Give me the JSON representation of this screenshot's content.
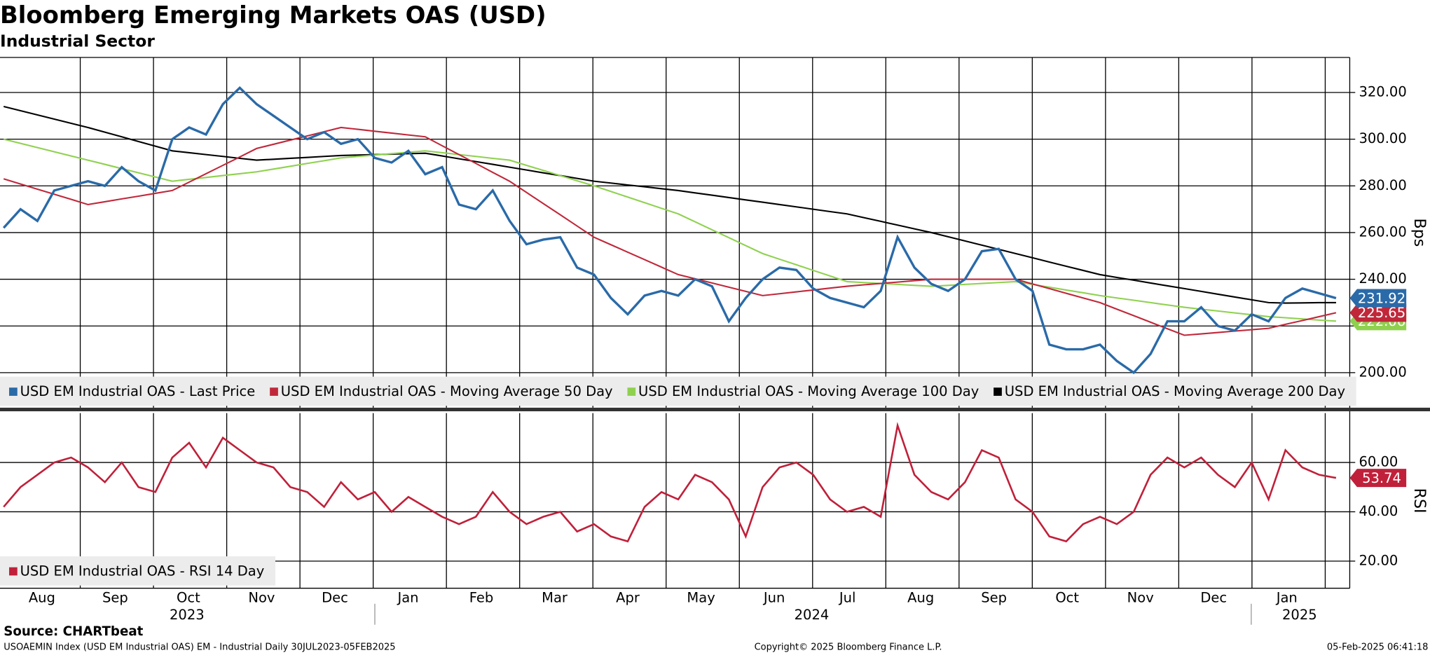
{
  "header": {
    "title": "Bloomberg Emerging Markets OAS (USD)",
    "subtitle": "Industrial Sector"
  },
  "x_axis": {
    "months": [
      "Aug",
      "Sep",
      "Oct",
      "Nov",
      "Dec",
      "Jan",
      "Feb",
      "Mar",
      "Apr",
      "May",
      "Jun",
      "Jul",
      "Aug",
      "Sep",
      "Oct",
      "Nov",
      "Dec",
      "Jan"
    ],
    "years": [
      "2023",
      "2024",
      "2025"
    ]
  },
  "chart_data": [
    {
      "type": "line",
      "y_axis_label": "Bps",
      "ylim": [
        185,
        335
      ],
      "yticks": [
        {
          "value": 200,
          "label": "200.00"
        },
        {
          "value": 220,
          "label": "220.00"
        },
        {
          "value": 240,
          "label": "240.00"
        },
        {
          "value": 260,
          "label": "260.00"
        },
        {
          "value": 280,
          "label": "280.00"
        },
        {
          "value": 300,
          "label": "300.00"
        },
        {
          "value": 320,
          "label": "320.00"
        }
      ],
      "grid": true,
      "series": [
        {
          "name": "USD EM Industrial OAS - Moving Average 200 Day",
          "color": "#000000",
          "values": [
            314,
            312.2,
            310.4,
            308.6,
            306.8,
            305,
            303,
            301,
            299,
            297,
            295,
            294.2,
            293.4,
            292.6,
            291.8,
            291,
            291.4,
            291.8,
            292.2,
            292.6,
            293,
            293.2,
            293.4,
            293.6,
            293.8,
            294,
            292.8,
            291.6,
            290.4,
            289.2,
            288,
            286.8,
            285.6,
            284.4,
            283.2,
            282,
            281.2,
            280.4,
            279.6,
            278.8,
            278,
            277,
            276,
            275,
            274,
            273,
            272,
            271,
            270,
            269,
            268,
            266.4,
            264.8,
            263.2,
            261.6,
            260,
            258.2,
            256.4,
            254.6,
            252.8,
            251,
            249.2,
            247.4,
            245.6,
            243.8,
            242,
            240.8,
            239.6,
            238.4,
            237.2,
            236,
            234.8,
            233.6,
            232.4,
            231.2,
            230,
            229.8,
            229.9,
            230,
            230
          ]
        },
        {
          "name": "USD EM Industrial OAS - Moving Average 100 Day",
          "color": "#8fd14f",
          "last_value_label": "222.06",
          "values": [
            300,
            298.2,
            296.4,
            294.6,
            292.8,
            291,
            289.2,
            287.4,
            285.6,
            283.8,
            282,
            282.8,
            283.6,
            284.4,
            285.2,
            286,
            287.2,
            288.4,
            289.6,
            290.8,
            292,
            292.6,
            293.2,
            293.8,
            294.4,
            295,
            294.2,
            293.4,
            292.6,
            291.8,
            291,
            288.8,
            286.6,
            284.4,
            282.2,
            280,
            277.6,
            275.2,
            272.8,
            270.4,
            268,
            264.6,
            261.2,
            257.8,
            254.4,
            251,
            248.6,
            246.2,
            243.8,
            241.4,
            239,
            238.6,
            238.2,
            237.8,
            237.4,
            237,
            237.4,
            237.8,
            238.2,
            238.6,
            239,
            237.8,
            236.6,
            235.4,
            234.2,
            233,
            232,
            231,
            230,
            229,
            228,
            227.2,
            226.4,
            225.6,
            224.8,
            224,
            223.5,
            223,
            222.5,
            222.06
          ]
        },
        {
          "name": "USD EM Industrial OAS - Moving Average 50 Day",
          "color": "#c0283a",
          "last_value_label": "225.65",
          "values": [
            283,
            280.8,
            278.6,
            276.4,
            274.2,
            272,
            273.2,
            274.4,
            275.6,
            276.8,
            278,
            281.6,
            285.2,
            288.8,
            292.4,
            296,
            297.8,
            299.6,
            301.4,
            303.2,
            305,
            304.2,
            303.4,
            302.6,
            301.8,
            301,
            297.2,
            293.4,
            289.6,
            285.8,
            282,
            277.2,
            272.4,
            267.6,
            262.8,
            258,
            254.8,
            251.6,
            248.4,
            245.2,
            242,
            240.2,
            238.4,
            236.6,
            234.8,
            233,
            233.8,
            234.6,
            235.4,
            236.2,
            237,
            237.6,
            238.2,
            238.8,
            239.4,
            240,
            240,
            240,
            240,
            240,
            240,
            238,
            236,
            234,
            232,
            230,
            227.2,
            224.4,
            221.6,
            218.8,
            216,
            216.6,
            217.2,
            217.8,
            218.4,
            219,
            220.7,
            222.3,
            224,
            225.65
          ]
        },
        {
          "name": "USD EM Industrial OAS - Last Price",
          "color": "#2a6aa8",
          "last_value_label": "231.92",
          "values": [
            262,
            270,
            265,
            278,
            280,
            282,
            280,
            288,
            282,
            278,
            300,
            305,
            302,
            315,
            322,
            315,
            310,
            305,
            300,
            303,
            298,
            300,
            292,
            290,
            295,
            285,
            288,
            272,
            270,
            278,
            265,
            255,
            257,
            258,
            245,
            242,
            232,
            225,
            233,
            235,
            233,
            240,
            237,
            222,
            232,
            240,
            245,
            244,
            236,
            232,
            230,
            228,
            235,
            258,
            245,
            238,
            235,
            240,
            252,
            253,
            240,
            235,
            212,
            210,
            210,
            212,
            205,
            200,
            208,
            222,
            222,
            228,
            220,
            218,
            225,
            222,
            232,
            236,
            234,
            231.92
          ]
        }
      ],
      "legend_order": [
        3,
        2,
        1,
        0
      ]
    },
    {
      "type": "line",
      "y_axis_label": "RSI",
      "ylim": [
        9,
        80
      ],
      "yticks": [
        {
          "value": 20,
          "label": "20.00"
        },
        {
          "value": 40,
          "label": "40.00"
        },
        {
          "value": 60,
          "label": "60.00"
        }
      ],
      "grid": true,
      "series": [
        {
          "name": "USD EM Industrial OAS - RSI 14 Day",
          "color": "#c0203a",
          "last_value_label": "53.74",
          "values": [
            42,
            50,
            55,
            60,
            62,
            58,
            52,
            60,
            50,
            48,
            62,
            68,
            58,
            70,
            65,
            60,
            58,
            50,
            48,
            42,
            52,
            45,
            48,
            40,
            46,
            42,
            38,
            35,
            38,
            48,
            40,
            35,
            38,
            40,
            32,
            35,
            30,
            28,
            42,
            48,
            45,
            55,
            52,
            45,
            30,
            50,
            58,
            60,
            55,
            45,
            40,
            42,
            38,
            75,
            55,
            48,
            45,
            52,
            65,
            62,
            45,
            40,
            30,
            28,
            35,
            38,
            35,
            40,
            55,
            62,
            58,
            62,
            55,
            50,
            60,
            45,
            65,
            58,
            55,
            53.74
          ]
        }
      ],
      "legend_order": [
        0
      ]
    }
  ],
  "footer": {
    "source": "Source: CHARTbeat",
    "index_info": "USOAEMIN Index (USD EM Industrial OAS) EM - Industrial  Daily 30JUL2023-05FEB2025",
    "copyright": "Copyright© 2025 Bloomberg Finance L.P.",
    "timestamp": "05-Feb-2025 06:41:18"
  }
}
